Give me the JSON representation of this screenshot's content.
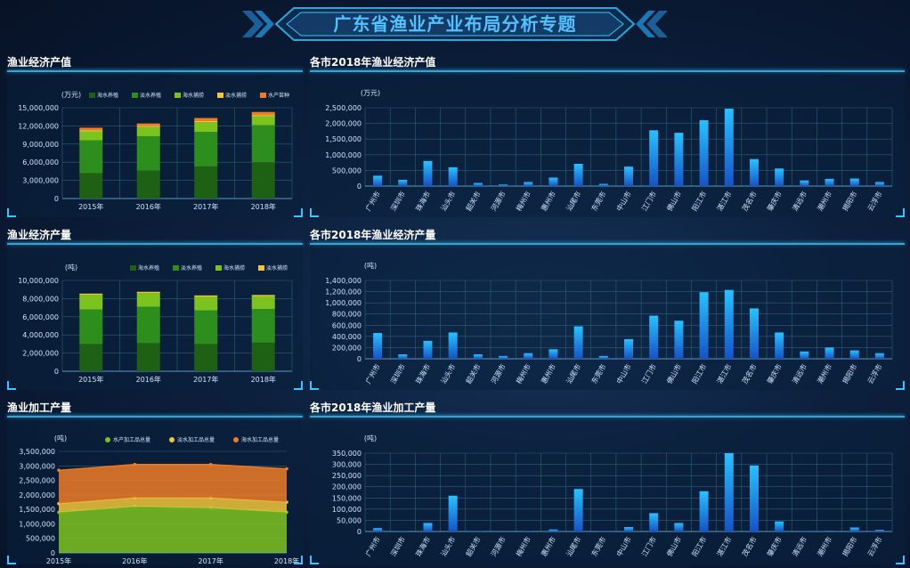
{
  "page_title": "广东省渔业产业布局分析专题",
  "colors": {
    "seawater_farming": "#1f6114",
    "freshwater_farming": "#2d8e1e",
    "seawater_fishing": "#7cc31f",
    "freshwater_fishing": "#f2c63a",
    "fry": "#ef7d28",
    "city_bar_top": "#28c2ff",
    "city_bar_bottom": "#1553c8",
    "grid": "#2d5f7c"
  },
  "chart_data": [
    {
      "id": "value-by-year",
      "type": "bar",
      "stacked": true,
      "title": "渔业经济产值",
      "unit": "(万元)",
      "categories": [
        "2015年",
        "2016年",
        "2017年",
        "2018年"
      ],
      "ylim": [
        0,
        15000000
      ],
      "yticks": [
        0,
        3000000,
        6000000,
        9000000,
        12000000,
        15000000
      ],
      "ytick_labels": [
        "0",
        "3,000,000",
        "6,000,000",
        "9,000,000",
        "12,000,000",
        "15,000,000"
      ],
      "series": [
        {
          "name": "海水养殖",
          "color_key": "seawater_farming",
          "values": [
            4200000,
            4600000,
            5300000,
            6000000
          ]
        },
        {
          "name": "淡水养殖",
          "color_key": "freshwater_farming",
          "values": [
            5400000,
            5700000,
            5700000,
            6100000
          ]
        },
        {
          "name": "海水捕捞",
          "color_key": "seawater_fishing",
          "values": [
            1500000,
            1500000,
            1600000,
            1500000
          ]
        },
        {
          "name": "淡水捕捞",
          "color_key": "freshwater_fishing",
          "values": [
            200000,
            200000,
            200000,
            200000
          ]
        },
        {
          "name": "水产苗种",
          "color_key": "fry",
          "values": [
            400000,
            400000,
            500000,
            500000
          ]
        }
      ]
    },
    {
      "id": "value-by-city",
      "type": "bar",
      "title": "各市2018年渔业经济产值",
      "unit": "(万元)",
      "categories": [
        "广州市",
        "深圳市",
        "珠海市",
        "汕头市",
        "韶关市",
        "河源市",
        "梅州市",
        "惠州市",
        "汕尾市",
        "东莞市",
        "中山市",
        "江门市",
        "佛山市",
        "阳江市",
        "湛江市",
        "茂名市",
        "肇庆市",
        "清远市",
        "潮州市",
        "揭阳市",
        "云浮市"
      ],
      "values": [
        330000,
        200000,
        800000,
        600000,
        100000,
        50000,
        130000,
        270000,
        710000,
        70000,
        620000,
        1780000,
        1700000,
        2100000,
        2470000,
        860000,
        560000,
        180000,
        230000,
        240000,
        130000
      ],
      "ylim": [
        0,
        2500000
      ],
      "yticks": [
        0,
        500000,
        1000000,
        1500000,
        2000000,
        2500000
      ],
      "ytick_labels": [
        "0",
        "500,000",
        "1,000,000",
        "1,500,000",
        "2,000,000",
        "2,500,000"
      ]
    },
    {
      "id": "output-by-year",
      "type": "bar",
      "stacked": true,
      "title": "渔业经济产量",
      "unit": "(吨)",
      "categories": [
        "2015年",
        "2016年",
        "2017年",
        "2018年"
      ],
      "ylim": [
        0,
        10000000
      ],
      "yticks": [
        0,
        2000000,
        4000000,
        6000000,
        8000000,
        10000000
      ],
      "ytick_labels": [
        "0",
        "2,000,000",
        "4,000,000",
        "6,000,000",
        "8,000,000",
        "10,000,000"
      ],
      "series": [
        {
          "name": "海水养殖",
          "color_key": "seawater_farming",
          "values": [
            3000000,
            3100000,
            3000000,
            3150000
          ]
        },
        {
          "name": "淡水养殖",
          "color_key": "freshwater_farming",
          "values": [
            3800000,
            4000000,
            3700000,
            3700000
          ]
        },
        {
          "name": "海水捕捞",
          "color_key": "seawater_fishing",
          "values": [
            1600000,
            1500000,
            1500000,
            1400000
          ]
        },
        {
          "name": "淡水捕捞",
          "color_key": "freshwater_fishing",
          "values": [
            150000,
            150000,
            150000,
            150000
          ]
        }
      ]
    },
    {
      "id": "output-by-city",
      "type": "bar",
      "title": "各市2018年渔业经济产量",
      "unit": "(吨)",
      "categories": [
        "广州市",
        "深圳市",
        "珠海市",
        "汕头市",
        "韶关市",
        "河源市",
        "梅州市",
        "惠州市",
        "汕尾市",
        "东莞市",
        "中山市",
        "江门市",
        "佛山市",
        "阳江市",
        "湛江市",
        "茂名市",
        "肇庆市",
        "清远市",
        "潮州市",
        "揭阳市",
        "云浮市"
      ],
      "values": [
        460000,
        80000,
        320000,
        470000,
        80000,
        50000,
        100000,
        170000,
        580000,
        50000,
        350000,
        770000,
        680000,
        1190000,
        1230000,
        900000,
        470000,
        130000,
        200000,
        150000,
        100000
      ],
      "ylim": [
        0,
        1400000
      ],
      "yticks": [
        0,
        200000,
        400000,
        600000,
        800000,
        1000000,
        1200000,
        1400000
      ],
      "ytick_labels": [
        "0",
        "200,000",
        "400,000",
        "600,000",
        "800,000",
        "1,000,000",
        "1,200,000",
        "1,400,000"
      ]
    },
    {
      "id": "processing-by-year",
      "type": "area",
      "stacked": true,
      "title": "渔业加工产量",
      "unit": "(吨)",
      "categories": [
        "2015年",
        "2016年",
        "2017年",
        "2018年"
      ],
      "ylim": [
        0,
        3500000
      ],
      "yticks": [
        0,
        500000,
        1000000,
        1500000,
        2000000,
        2500000,
        3000000,
        3500000
      ],
      "ytick_labels": [
        "0",
        "500,000",
        "1,000,000",
        "1,500,000",
        "2,000,000",
        "2,500,000",
        "3,000,000",
        "3,500,000"
      ],
      "series": [
        {
          "name": "水产加工品总量",
          "color_key": "seawater_fishing",
          "values": [
            1400000,
            1600000,
            1550000,
            1400000
          ]
        },
        {
          "name": "淡水加工品总量",
          "color_key": "freshwater_fishing",
          "values": [
            300000,
            300000,
            350000,
            350000
          ]
        },
        {
          "name": "海水加工品总量",
          "color_key": "fry",
          "values": [
            1150000,
            1150000,
            1150000,
            1150000
          ]
        }
      ]
    },
    {
      "id": "processing-by-city",
      "type": "bar",
      "title": "各市2018年渔业加工产量",
      "unit": "(吨)",
      "categories": [
        "广州市",
        "深圳市",
        "珠海市",
        "汕头市",
        "韶关市",
        "河源市",
        "梅州市",
        "惠州市",
        "汕尾市",
        "东莞市",
        "中山市",
        "江门市",
        "佛山市",
        "阳江市",
        "湛江市",
        "茂名市",
        "肇庆市",
        "清远市",
        "潮州市",
        "揭阳市",
        "云浮市"
      ],
      "values": [
        15000,
        2000,
        38000,
        160000,
        2000,
        1000,
        2000,
        9000,
        190000,
        2000,
        20000,
        82000,
        38000,
        180000,
        350000,
        295000,
        45000,
        2000,
        3000,
        18000,
        7000
      ],
      "ylim": [
        0,
        350000
      ],
      "yticks": [
        0,
        50000,
        100000,
        150000,
        200000,
        250000,
        300000,
        350000
      ],
      "ytick_labels": [
        "0",
        "50,000",
        "100,000",
        "150,000",
        "200,000",
        "250,000",
        "300,000",
        "350,000"
      ]
    }
  ]
}
